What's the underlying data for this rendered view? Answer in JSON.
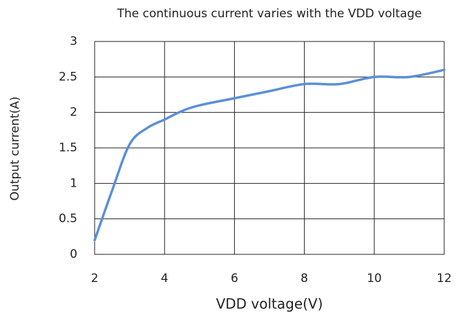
{
  "chart_data": {
    "type": "line",
    "title": "The continuous current varies with the VDD voltage",
    "x_label": "VDD voltage(V)",
    "y_label": "Output current(A)",
    "x": [
      2,
      2.5,
      3,
      3.5,
      4,
      4.5,
      5,
      6,
      7,
      8,
      9,
      10,
      11,
      12
    ],
    "series": [
      {
        "name": "Output current",
        "color": "#5b8fd6",
        "values": [
          0.2,
          0.9,
          1.55,
          1.78,
          1.9,
          2.02,
          2.1,
          2.2,
          2.3,
          2.4,
          2.4,
          2.5,
          2.5,
          2.6
        ]
      }
    ],
    "xlim": [
      2,
      12
    ],
    "xticks": [
      2,
      4,
      6,
      8,
      10,
      12
    ],
    "ylim": [
      0,
      3
    ],
    "yticks": [
      0,
      0.5,
      1,
      1.5,
      2,
      2.5,
      3
    ],
    "grid": true
  }
}
